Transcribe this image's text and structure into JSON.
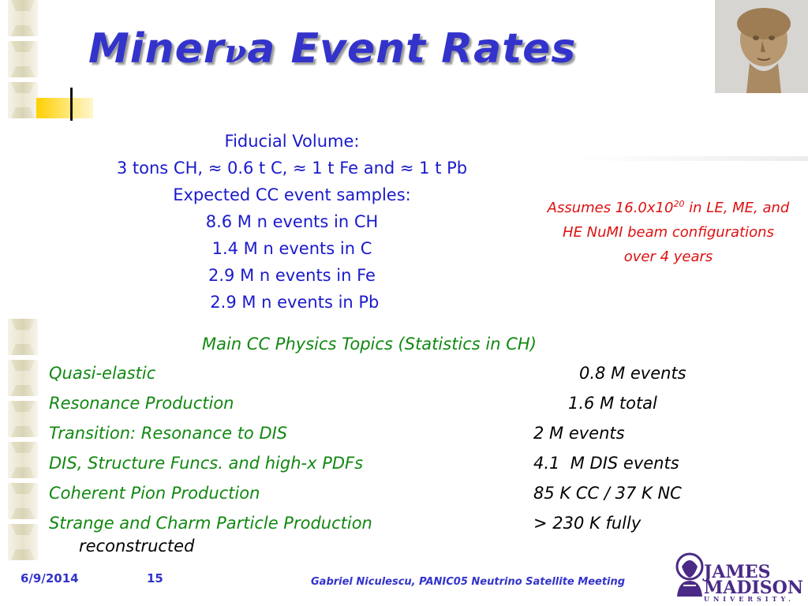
{
  "slide": {
    "title_pre": "Miner",
    "title_nu": "ν",
    "title_post": "a Event Rates"
  },
  "summary": {
    "lines": [
      "Fiducial Volume:",
      "3 tons CH, ≈  0.6 t C, ≈ 1 t Fe  and ≈ 1 t Pb",
      "Expected CC event samples:",
      "8.6 M n events in CH",
      "1.4 M n events in C",
      "2.9 M n events in Fe",
      " 2.9 M n events in Pb"
    ]
  },
  "note": {
    "part1": "Assumes 16.0x10",
    "sup": "20",
    "part2": " in LE, ME, and HE NuMI beam configurations over 4 years"
  },
  "topics": {
    "heading": "Main CC Physics Topics (Statistics in CH)",
    "rows": [
      {
        "label": "Quasi-elastic",
        "value": "0.8 M events"
      },
      {
        "label": "Resonance Production",
        "value": "1.6 M total"
      },
      {
        "label": "Transition: Resonance to DIS",
        "value": "2 M events"
      },
      {
        "label": "DIS, Structure Funcs. and high-x PDFs",
        "value": "4.1  M DIS events"
      },
      {
        "label": "Coherent Pion Production",
        "value": "85 K CC / 37 K NC"
      },
      {
        "label": "Strange and Charm Particle Production",
        "value": "> 230 K fully"
      }
    ],
    "continuation": "reconstructed"
  },
  "footer": {
    "date": "6/9/2014",
    "page": "15",
    "credit": "Gabriel Niculescu, PANIC05 Neutrino Satellite Meeting"
  },
  "logo": {
    "line1": "JAMES",
    "line2": "MADISON",
    "line3": "UNIVERSITY."
  },
  "colors": {
    "title": "#3333cc",
    "body_blue": "#1a1acc",
    "note_red": "#dd1111",
    "topic_green": "#118811",
    "logo_purple": "#4a2a86"
  }
}
